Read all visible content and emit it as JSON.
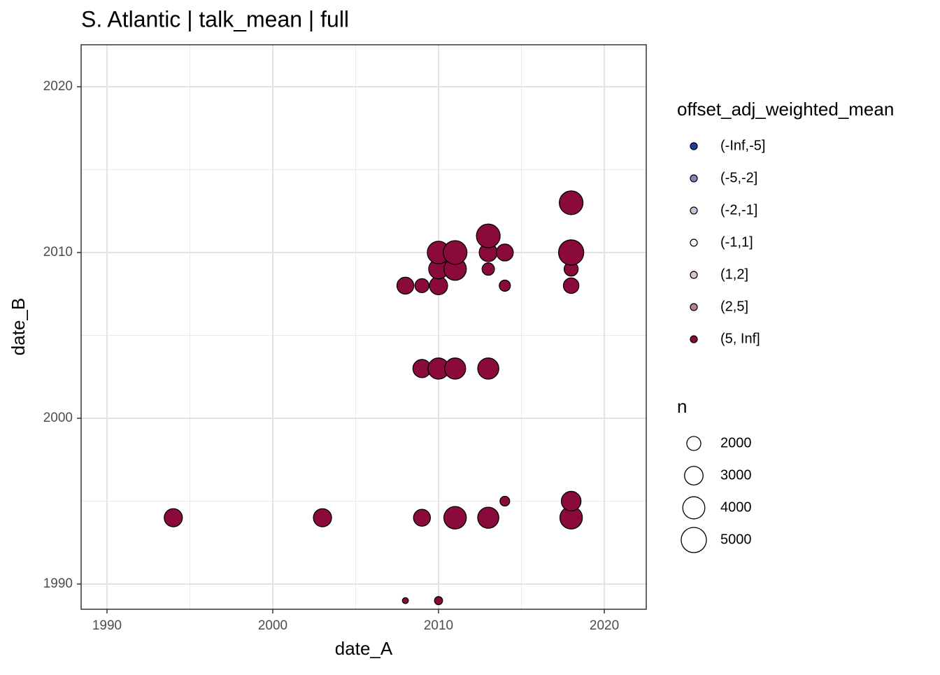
{
  "chart_data": {
    "type": "scatter",
    "title": "S. Atlantic | talk_mean | full",
    "x_label": "date_A",
    "y_label": "date_B",
    "xlim": [
      1988.44,
      2022.53
    ],
    "ylim": [
      1988.48,
      2022.53
    ],
    "xticks": [
      1990,
      2000,
      2010,
      2020
    ],
    "yticks": [
      1990,
      2000,
      2010,
      2020
    ],
    "xminor": [
      1995,
      2005,
      2015
    ],
    "yminor": [
      1995,
      2005,
      2015
    ],
    "grid": true,
    "color_legend_title": "offset_adj_weighted_mean",
    "series": [
      {
        "name": "(-Inf,-5]",
        "color": "#1a3f9e",
        "x": [],
        "values": [],
        "sizes": []
      },
      {
        "name": "(-5,-2]",
        "color": "#8088b8",
        "x": [],
        "values": [],
        "sizes": []
      },
      {
        "name": "(-2,-1]",
        "color": "#c2c4da",
        "x": [],
        "values": [],
        "sizes": []
      },
      {
        "name": "(-1,1]",
        "color": "#f5f5f5",
        "x": [],
        "values": [],
        "sizes": []
      },
      {
        "name": "(1,2]",
        "color": "#dcc2ca",
        "x": [],
        "values": [],
        "sizes": []
      },
      {
        "name": "(2,5]",
        "color": "#b98290",
        "x": [],
        "values": [],
        "sizes": []
      },
      {
        "name": "(5, Inf]",
        "color": "#8b0a3c",
        "x": [
          1994,
          2003,
          2009,
          2011,
          2013,
          2018,
          2018,
          2014,
          2008,
          2010,
          2009,
          2010,
          2011,
          2013,
          2008,
          2009,
          2010,
          2014,
          2018,
          2010,
          2011,
          2013,
          2018,
          2010,
          2011,
          2013,
          2014,
          2018,
          2013,
          2018
        ],
        "values": [
          1994,
          1994,
          1994,
          1994,
          1994,
          1994,
          1995,
          1995,
          1989,
          1989,
          2003,
          2003,
          2003,
          2003,
          2008,
          2008,
          2008,
          2008,
          2008,
          2009,
          2009,
          2009,
          2009,
          2010,
          2010,
          2010,
          2010,
          2010,
          2011,
          2013
        ],
        "sizes": [
          2900,
          2900,
          2600,
          4100,
          3700,
          4100,
          3300,
          1300,
          900,
          1100,
          2900,
          3700,
          3700,
          3700,
          2600,
          2000,
          2900,
          1500,
          2300,
          3300,
          4100,
          1700,
          2000,
          4100,
          4500,
          2900,
          2600,
          5000,
          4500,
          4500
        ]
      }
    ],
    "size_legend": {
      "title": "n",
      "breaks": [
        2000,
        3000,
        4000,
        5000
      ]
    }
  }
}
